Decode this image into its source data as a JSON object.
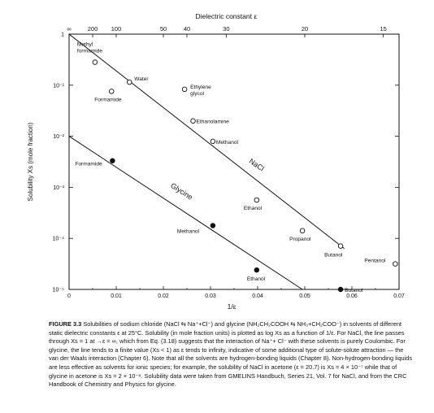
{
  "chart_data": {
    "type": "scatter",
    "title": "",
    "xlabel": "1/ε",
    "ylabel": "Solubility Xs (mole fraction)",
    "top_axis_label": "Dielectric constant ε",
    "x_range": [
      0,
      0.07
    ],
    "y_log_range": [
      -5,
      0
    ],
    "y_scale": "log",
    "grid": false,
    "x_ticks": [
      "0",
      "0.01",
      "0.02",
      "0.03",
      "0.04",
      "0.05",
      "0.06",
      "0.07"
    ],
    "y_ticks": [
      "1",
      "10⁻¹",
      "10⁻²",
      "10⁻³",
      "10⁻⁴",
      "10⁻⁵"
    ],
    "top_ticks": [
      {
        "label": "∞",
        "eps": null
      },
      {
        "label": "200",
        "eps": 200
      },
      {
        "label": "100",
        "eps": 100
      },
      {
        "label": "50",
        "eps": 50
      },
      {
        "label": "40",
        "eps": 40
      },
      {
        "label": "30",
        "eps": 30
      },
      {
        "label": "20",
        "eps": 20
      },
      {
        "label": "15",
        "eps": 15
      }
    ],
    "series": [
      {
        "name": "NaCl",
        "marker": "open-circle",
        "line": {
          "x": [
            0,
            0.0584
          ],
          "log_y": [
            0,
            -4.2
          ]
        },
        "points": [
          {
            "label": "Methyl formamide",
            "x": 0.0055,
            "log_y": -0.55
          },
          {
            "label": "Formamide",
            "x": 0.009,
            "log_y": -1.12
          },
          {
            "label": "Water",
            "x": 0.0128,
            "log_y": -0.94
          },
          {
            "label": "Ethylene glycol",
            "x": 0.0245,
            "log_y": -1.08
          },
          {
            "label": "Ethanolamine",
            "x": 0.0263,
            "log_y": -1.7
          },
          {
            "label": "Methanol",
            "x": 0.0305,
            "log_y": -2.1
          },
          {
            "label": "Ethanol",
            "x": 0.0398,
            "log_y": -3.25
          },
          {
            "label": "Propanol",
            "x": 0.0495,
            "log_y": -3.85
          },
          {
            "label": "Butanol",
            "x": 0.0576,
            "log_y": -4.15
          },
          {
            "label": "Pentanol",
            "x": 0.0692,
            "log_y": -4.5
          }
        ]
      },
      {
        "name": "Glycine",
        "marker": "filled-circle",
        "line": {
          "x": [
            0,
            0.0495
          ],
          "log_y": [
            -2,
            -5
          ]
        },
        "points": [
          {
            "label": "Formamide",
            "x": 0.0092,
            "log_y": -2.48
          },
          {
            "label": "Methanol",
            "x": 0.0305,
            "log_y": -3.75
          },
          {
            "label": "Ethanol",
            "x": 0.0398,
            "log_y": -4.62
          },
          {
            "label": "Butanol",
            "x": 0.0576,
            "log_y": -5.0
          }
        ]
      }
    ]
  },
  "caption": {
    "label": "FIGURE 3.3",
    "text": "Solubilities of sodium chloride (NaCl ⇆ Na⁺+Cl⁻) and glycine (NH₂CH₂COOH ⇆ NH₃+CH₂COO⁻) in solvents of different static dielectric constants ε at 25°C. Solubility (in mole fraction units) is plotted as log Xs as a function of 1/ε. For NaCl, the line passes through Xs = 1 at →ε = ∞, which from Eq. (3.18) suggests that the interaction of Na⁺+ Cl⁻ with these solvents is purely Coulombic. For glycine, the line tends to a finite value (Xs < 1) as ε tends to infinity, indicative of some additional type of solute-solute attraction — the van der Waals interaction (Chapter 6). Note that all the solvents are hydrogen-bonding liquids (Chapter 8). Non-hydrogen-bonding liquids are less effective as solvents for ionic species; for example, the solubility of NaCl in acetone (ε = 20.7) is Xs = 4 × 10⁻⁷ while that of glycine in acetone is Xs = 2 × 10⁻⁸. Solubility data were taken from GMELINS Handbuch, Series 21, Vol. 7 for NaCl, and from the CRC Handbook of Chemistry and Physics for glycine."
  }
}
